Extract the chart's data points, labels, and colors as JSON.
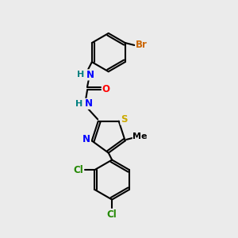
{
  "bg_color": "#ebebeb",
  "bond_color": "#000000",
  "atom_colors": {
    "N": "#0000ff",
    "O": "#ff0000",
    "S": "#ccaa00",
    "Br": "#cc6600",
    "Cl": "#228800",
    "C": "#000000",
    "H": "#008080"
  },
  "lw": 1.5,
  "fs": 8.5
}
